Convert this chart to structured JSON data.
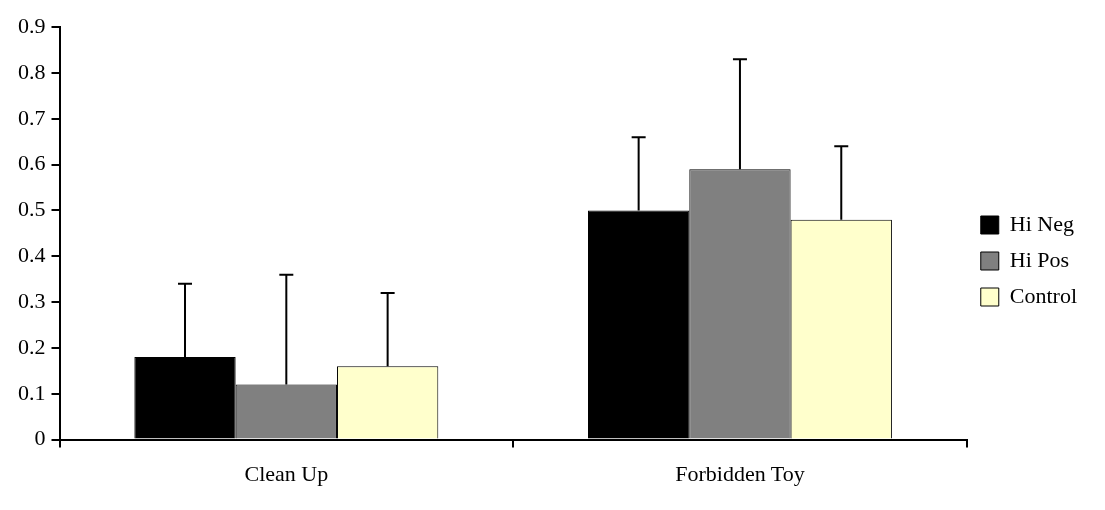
{
  "chart_data": {
    "type": "bar",
    "categories": [
      "Clean Up",
      "Forbidden Toy"
    ],
    "series": [
      {
        "name": "Hi Neg",
        "color": "#000000",
        "values": [
          0.18,
          0.5
        ],
        "errors": [
          [
            0.18,
            0.34
          ],
          [
            0.5,
            0.66
          ]
        ]
      },
      {
        "name": "Hi Pos",
        "color": "#808080",
        "values": [
          0.12,
          0.59
        ],
        "errors": [
          [
            0.12,
            0.36
          ],
          [
            0.59,
            0.83
          ]
        ]
      },
      {
        "name": "Control",
        "color": "#ffffcc",
        "values": [
          0.16,
          0.48
        ],
        "errors": [
          [
            0.16,
            0.32
          ],
          [
            0.48,
            0.64
          ]
        ]
      }
    ],
    "ylim": [
      0,
      0.9
    ],
    "yticks": [
      0,
      0.1,
      0.2,
      0.3,
      0.4,
      0.5,
      0.6,
      0.7,
      0.8,
      0.9
    ],
    "grid": false,
    "legend": "right"
  }
}
